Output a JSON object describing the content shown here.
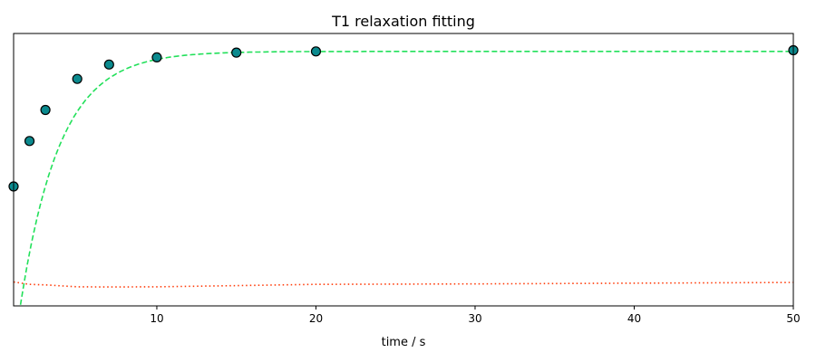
{
  "chart_data": {
    "type": "scatter",
    "title": "T1 relaxation fitting",
    "xlabel": "time / s",
    "ylabel": "",
    "xlim": [
      1,
      50
    ],
    "ylim": [
      -0.12,
      1.02
    ],
    "x_ticks": [
      10,
      20,
      30,
      40,
      50
    ],
    "y_ticks_shown": false,
    "grid": false,
    "legend": "none",
    "series": [
      {
        "kind": "points",
        "x": [
          1,
          2,
          3,
          5,
          7,
          10,
          15,
          20,
          50
        ],
        "y": [
          0.38,
          0.57,
          0.7,
          0.83,
          0.89,
          0.92,
          0.94,
          0.945,
          0.95
        ],
        "color": "#0b8a8e",
        "edge_color": "#000000"
      },
      {
        "kind": "fit-curve",
        "model": "M0*(1-2*exp(-t/T1)) + C",
        "params": {
          "M0": 0.945,
          "T1": 2.48,
          "C": 0.0
        },
        "style": "dashed",
        "color": "#22e05a"
      },
      {
        "kind": "residuals",
        "x": [
          1,
          2,
          3,
          5,
          7,
          10,
          15,
          20,
          30,
          40,
          50
        ],
        "y": [
          -0.02,
          -0.03,
          -0.032,
          -0.04,
          -0.041,
          -0.04,
          -0.035,
          -0.03,
          -0.028,
          -0.025,
          -0.022
        ],
        "style": "dotted",
        "color": "#ff3c0a"
      }
    ]
  }
}
